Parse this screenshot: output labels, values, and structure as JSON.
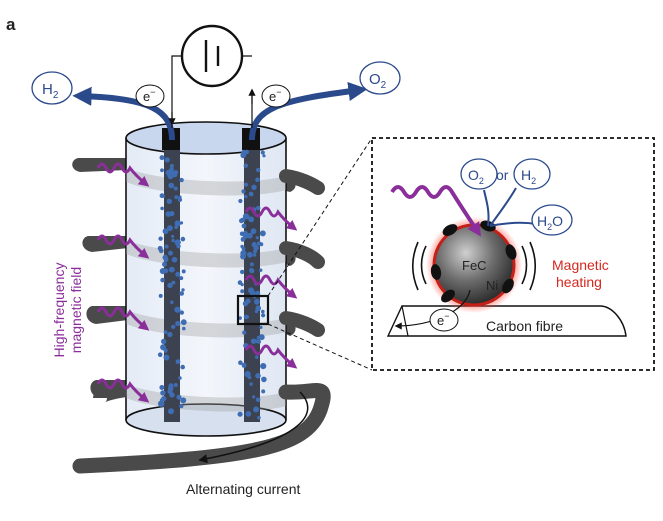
{
  "panel_label": "a",
  "labels": {
    "h2_left": {
      "main": "H",
      "sub": "2"
    },
    "o2_right": {
      "main": "O",
      "sub": "2"
    },
    "electron_left": {
      "main": "e",
      "sup": "−"
    },
    "electron_right": {
      "main": "e",
      "sup": "−"
    },
    "field_line1": "High-frequency",
    "field_line2": "magnetic field",
    "alternating_current": "Alternating current"
  },
  "inset": {
    "o2": {
      "main": "O",
      "sub": "2"
    },
    "or": "or",
    "h2": {
      "main": "H",
      "sub": "2"
    },
    "h2o": {
      "main": "H",
      "sub": "2",
      "tail": "O"
    },
    "fec": "FeC",
    "ni": "Ni",
    "electron": {
      "main": "e",
      "sup": "−"
    },
    "carbon_fibre": "Carbon fibre",
    "heating_line1": "Magnetic",
    "heating_line2": "heating"
  },
  "colors": {
    "gas_blue": "#2b4a8c",
    "wave_purple": "#8a2e9a",
    "heating_red": "#d6281e",
    "coil_dark": "#4a4a4a",
    "electrolyte": "#dde6f3",
    "particle": "#3f6db3"
  }
}
